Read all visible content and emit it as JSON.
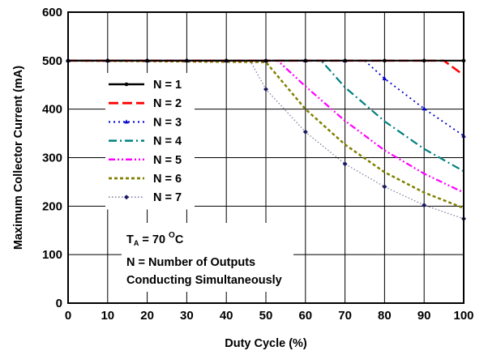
{
  "chart_data": {
    "type": "line",
    "title": "",
    "xlabel": "Duty Cycle (%)",
    "ylabel": "Maximum Collector Current (mA)",
    "xlim": [
      0,
      100
    ],
    "ylim": [
      0,
      600
    ],
    "xticks": [
      "0",
      "10",
      "20",
      "30",
      "40",
      "50",
      "60",
      "70",
      "80",
      "90",
      "100"
    ],
    "yticks": [
      "0",
      "100",
      "200",
      "300",
      "400",
      "500",
      "600"
    ],
    "grid": true,
    "legend_position": "left",
    "series": [
      {
        "name": "N = 1",
        "color": "#000000",
        "dash": "solid",
        "marker": "dot",
        "points": [
          [
            0,
            500
          ],
          [
            100,
            500
          ]
        ]
      },
      {
        "name": "N = 2",
        "color": "#ff0000",
        "dash": "long-dash",
        "marker": "none",
        "points": [
          [
            0,
            500
          ],
          [
            95,
            500
          ],
          [
            100,
            470
          ]
        ]
      },
      {
        "name": "N = 3",
        "color": "#0000cc",
        "dash": "dot",
        "marker": "triangle",
        "points": [
          [
            0,
            500
          ],
          [
            75,
            500
          ],
          [
            80,
            463
          ],
          [
            90,
            401
          ],
          [
            100,
            345
          ]
        ]
      },
      {
        "name": "N = 4",
        "color": "#008080",
        "dash": "dash-dot",
        "marker": "none",
        "points": [
          [
            0,
            500
          ],
          [
            64,
            500
          ],
          [
            70,
            445
          ],
          [
            80,
            375
          ],
          [
            90,
            318
          ],
          [
            100,
            272
          ]
        ]
      },
      {
        "name": "N = 5",
        "color": "#ff00ff",
        "dash": "dash-dot-dot",
        "marker": "none",
        "points": [
          [
            0,
            500
          ],
          [
            53,
            500
          ],
          [
            60,
            447
          ],
          [
            70,
            376
          ],
          [
            80,
            315
          ],
          [
            90,
            267
          ],
          [
            100,
            228
          ]
        ]
      },
      {
        "name": "N = 6",
        "color": "#808000",
        "dash": "short-dash",
        "marker": "none",
        "points": [
          [
            0,
            500
          ],
          [
            50,
            497
          ],
          [
            60,
            400
          ],
          [
            70,
            327
          ],
          [
            80,
            270
          ],
          [
            90,
            228
          ],
          [
            100,
            196
          ]
        ]
      },
      {
        "name": "N = 7",
        "color": "#8080a0",
        "dash": "fine-dot",
        "marker": "diamond",
        "points": [
          [
            0,
            500
          ],
          [
            46,
            500
          ],
          [
            50,
            441
          ],
          [
            60,
            353
          ],
          [
            70,
            287
          ],
          [
            80,
            240
          ],
          [
            90,
            202
          ],
          [
            100,
            174
          ]
        ]
      }
    ],
    "annotations": {
      "temp_main": "T",
      "temp_sub": "A",
      "temp_value": " = 70 ",
      "temp_deg": "O",
      "temp_unit": "C",
      "note_line1": "N = Number of Outputs",
      "note_line2": "Conducting Simultaneously"
    }
  }
}
